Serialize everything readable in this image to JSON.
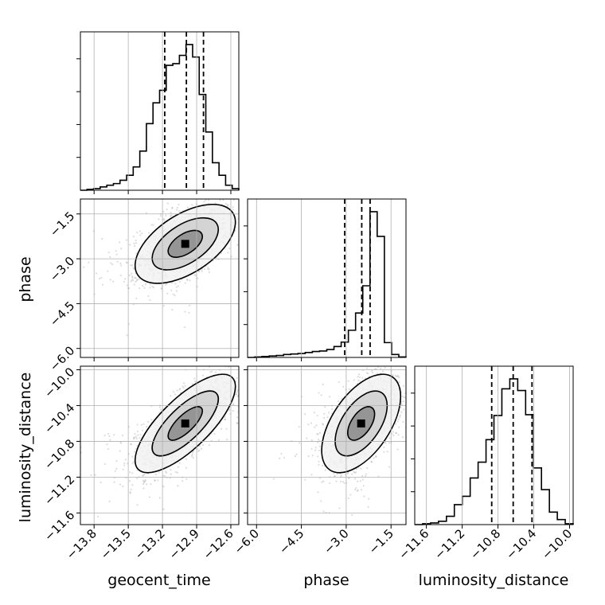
{
  "chart_data": {
    "type": "corner",
    "parameters": [
      "geocent_time",
      "phase",
      "luminosity_distance"
    ],
    "axis_labels": {
      "x": [
        "geocent_time",
        "phase",
        "luminosity_distance"
      ],
      "y": [
        "phase",
        "luminosity_distance"
      ]
    },
    "ranges": {
      "geocent_time": [
        -13.92,
        -12.53
      ],
      "phase": [
        -6.3,
        -1.0
      ],
      "luminosity_distance": [
        -11.73,
        -9.96
      ]
    },
    "ticks": {
      "geocent_time": [
        "−13.8",
        "−13.5",
        "−13.2",
        "−12.9",
        "−12.6"
      ],
      "phase": [
        "−6.0",
        "−4.5",
        "−3.0",
        "−1.5"
      ],
      "luminosity_distance": [
        "−11.6",
        "−11.2",
        "−10.8",
        "−10.4",
        "−10.0"
      ]
    },
    "quantiles": {
      "geocent_time": [
        -13.18,
        -12.99,
        -12.84
      ],
      "phase": [
        -3.05,
        -2.48,
        -2.2
      ],
      "luminosity_distance": [
        -10.87,
        -10.63,
        -10.42
      ]
    },
    "histograms": {
      "geocent_time": {
        "range": [
          -13.92,
          -12.53
        ],
        "counts": [
          0,
          1,
          2,
          4,
          6,
          8,
          12,
          18,
          28,
          47,
          80,
          105,
          120,
          150,
          152,
          162,
          175,
          160,
          115,
          70,
          33,
          18,
          6,
          2
        ]
      },
      "phase": {
        "range": [
          -6.3,
          -1.0
        ],
        "counts": [
          0,
          1,
          2,
          3,
          4,
          6,
          7,
          8,
          10,
          12,
          13,
          16,
          22,
          31,
          55,
          90,
          145,
          295,
          245,
          30,
          6,
          1
        ]
      },
      "luminosity_distance": {
        "range": [
          -11.73,
          -9.96
        ],
        "counts": [
          0,
          1,
          2,
          4,
          10,
          24,
          34,
          56,
          75,
          102,
          131,
          163,
          175,
          161,
          132,
          68,
          42,
          15,
          6,
          1
        ]
      }
    },
    "pairs": [
      {
        "x": "geocent_time",
        "y": "phase",
        "correlation": 0.55,
        "mean": [
          -13.0,
          -2.5
        ],
        "sd": [
          0.2,
          0.6
        ]
      },
      {
        "x": "geocent_time",
        "y": "luminosity_distance",
        "correlation": 0.75,
        "mean": [
          -13.0,
          -10.6
        ],
        "sd": [
          0.2,
          0.25
        ]
      },
      {
        "x": "phase",
        "y": "luminosity_distance",
        "correlation": 0.55,
        "mean": [
          -2.5,
          -10.6
        ],
        "sd": [
          0.6,
          0.25
        ]
      }
    ],
    "grid": true
  }
}
